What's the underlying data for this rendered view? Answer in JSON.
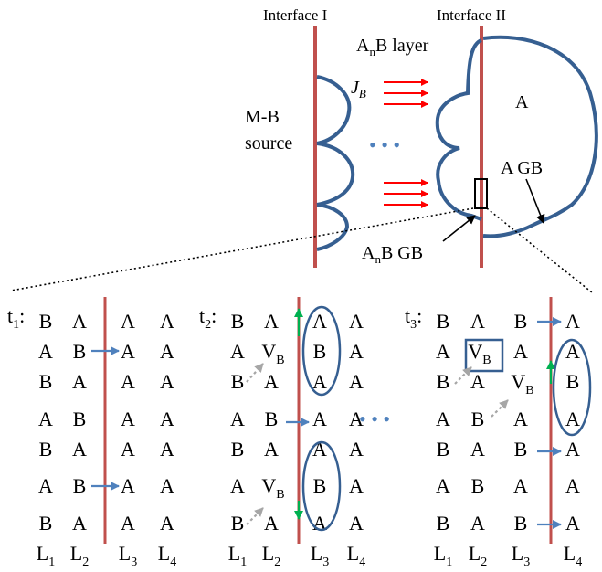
{
  "top": {
    "interface_1": "Interface I",
    "interface_2": "Interface II",
    "layer_label": {
      "main": "A",
      "sub": "n",
      "rest": "B layer"
    },
    "flux_label": {
      "main": "J",
      "sub": "B"
    },
    "source_label": [
      "M-B",
      "source"
    ],
    "ellipsis": "• • •",
    "grain_label": "A",
    "grain_boundary_label": "A GB",
    "anb_gb_label": {
      "main": "A",
      "sub": "n",
      "rest": "B GB"
    }
  },
  "panels": [
    {
      "time": {
        "main": "t",
        "sub": "1",
        "suffix": ":"
      },
      "rows": [
        [
          "B",
          "A",
          "A",
          "A"
        ],
        [
          "A",
          "B",
          "A",
          "A"
        ],
        [
          "B",
          "A",
          "A",
          "A"
        ],
        [
          "A",
          "B",
          "A",
          "A"
        ],
        [
          "B",
          "A",
          "A",
          "A"
        ],
        [
          "A",
          "B",
          "A",
          "A"
        ],
        [
          "B",
          "A",
          "A",
          "A"
        ]
      ]
    },
    {
      "time": {
        "main": "t",
        "sub": "2",
        "suffix": ":"
      },
      "rows": [
        [
          "B",
          "A",
          "A",
          "A"
        ],
        [
          "A",
          "V_B",
          "B",
          "A"
        ],
        [
          "B",
          "A",
          "A",
          "A"
        ],
        [
          "A",
          "B",
          "A",
          "A"
        ],
        [
          "B",
          "A",
          "A",
          "A"
        ],
        [
          "A",
          "V_B",
          "B",
          "A"
        ],
        [
          "B",
          "A",
          "A",
          "A"
        ]
      ]
    },
    {
      "time": {
        "main": "t",
        "sub": "3",
        "suffix": ":"
      },
      "rows": [
        [
          "B",
          "A",
          "B",
          "A"
        ],
        [
          "A",
          "V_B",
          "A",
          "A"
        ],
        [
          "B",
          "A",
          "V_B",
          "B"
        ],
        [
          "A",
          "B",
          "A",
          "A"
        ],
        [
          "B",
          "A",
          "B",
          "A"
        ],
        [
          "A",
          "B",
          "A",
          "A"
        ],
        [
          "B",
          "A",
          "B",
          "A"
        ]
      ]
    }
  ],
  "layer_labels": [
    {
      "main": "L",
      "sub": "1"
    },
    {
      "main": "L",
      "sub": "2"
    },
    {
      "main": "L",
      "sub": "3"
    },
    {
      "main": "L",
      "sub": "4"
    }
  ],
  "mid_ellipsis": "• • •",
  "colors": {
    "interface": "#c0504d",
    "outline": "#365f91",
    "flux": "#ff0000",
    "arrow": "#4f81bd",
    "up_arrow": "#00b050",
    "dotted": "#a6a6a6"
  }
}
